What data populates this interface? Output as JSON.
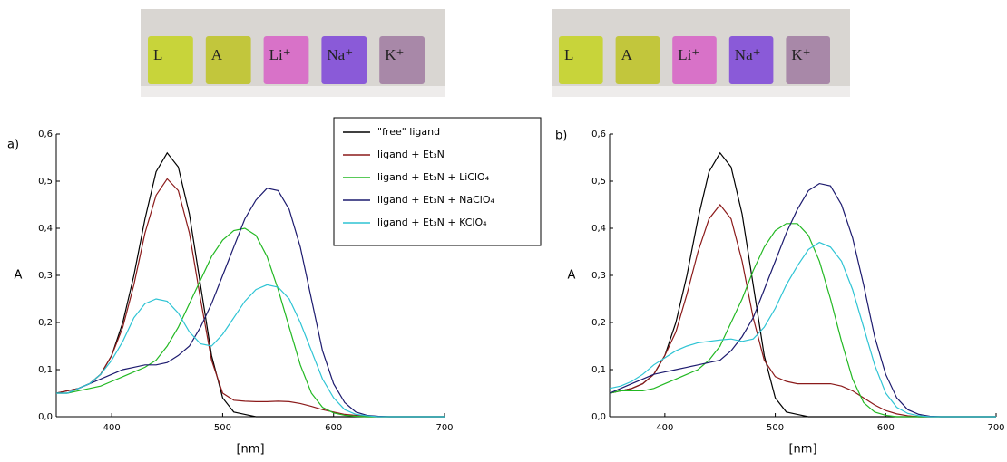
{
  "photos": [
    {
      "labels": [
        "L",
        "A",
        "Li⁺",
        "Na⁺",
        "K⁺"
      ]
    },
    {
      "labels": [
        "L",
        "A",
        "Li⁺",
        "Na⁺",
        "K⁺"
      ]
    }
  ],
  "chart_data": [
    {
      "type": "line",
      "panel_label": "a)",
      "x_label": "[nm]",
      "y_label": "A",
      "legend": "top-center",
      "x": [
        350,
        360,
        370,
        380,
        390,
        400,
        410,
        420,
        430,
        440,
        450,
        460,
        470,
        480,
        490,
        500,
        510,
        520,
        530,
        540,
        550,
        560,
        570,
        580,
        590,
        600,
        610,
        620,
        630,
        640,
        650,
        660,
        670,
        680,
        690,
        700
      ],
      "xlim": [
        350,
        700
      ],
      "ylim": [
        0,
        0.6
      ],
      "xticks": [
        400,
        500,
        600,
        700
      ],
      "yticks": [
        {
          "value": 0,
          "label": "0,0"
        },
        {
          "value": 0.1,
          "label": "0,1"
        },
        {
          "value": 0.2,
          "label": "0,2"
        },
        {
          "value": 0.3,
          "label": "0,3"
        },
        {
          "value": 0.4,
          "label": "0,4"
        },
        {
          "value": 0.5,
          "label": "0,5"
        },
        {
          "value": 0.6,
          "label": "0,6"
        }
      ],
      "series": [
        {
          "name": "\"free\" ligand",
          "color": "#000000",
          "values": [
            0.05,
            0.055,
            0.06,
            0.07,
            0.09,
            0.13,
            0.2,
            0.3,
            0.42,
            0.52,
            0.56,
            0.53,
            0.43,
            0.28,
            0.13,
            0.04,
            0.01,
            0.005,
            0,
            0,
            0,
            0,
            0,
            0,
            0,
            0,
            0,
            0,
            0,
            0,
            0,
            0,
            0,
            0,
            0,
            0
          ]
        },
        {
          "name": "ligand + Et₃N",
          "color": "#8b1a1a",
          "values": [
            0.05,
            0.055,
            0.06,
            0.07,
            0.09,
            0.13,
            0.19,
            0.28,
            0.39,
            0.47,
            0.505,
            0.48,
            0.39,
            0.25,
            0.12,
            0.05,
            0.035,
            0.033,
            0.032,
            0.032,
            0.033,
            0.032,
            0.028,
            0.022,
            0.015,
            0.01,
            0.005,
            0.003,
            0.002,
            0,
            0,
            0,
            0,
            0,
            0,
            0
          ]
        },
        {
          "name": "ligand + Et₃N + LiClO₄",
          "color": "#22b822",
          "values": [
            0.05,
            0.05,
            0.055,
            0.06,
            0.065,
            0.075,
            0.085,
            0.095,
            0.105,
            0.12,
            0.15,
            0.19,
            0.24,
            0.29,
            0.34,
            0.375,
            0.395,
            0.4,
            0.385,
            0.34,
            0.27,
            0.19,
            0.11,
            0.05,
            0.02,
            0.008,
            0.003,
            0.001,
            0,
            0,
            0,
            0,
            0,
            0,
            0,
            0
          ]
        },
        {
          "name": "ligand + Et₃N + NaClO₄",
          "color": "#1c1a6e",
          "values": [
            0.05,
            0.05,
            0.06,
            0.07,
            0.08,
            0.09,
            0.1,
            0.105,
            0.11,
            0.11,
            0.115,
            0.13,
            0.15,
            0.19,
            0.24,
            0.3,
            0.36,
            0.42,
            0.46,
            0.485,
            0.48,
            0.44,
            0.36,
            0.25,
            0.14,
            0.07,
            0.03,
            0.01,
            0.003,
            0.001,
            0,
            0,
            0,
            0,
            0,
            0
          ]
        },
        {
          "name": "ligand + Et₃N + KClO₄",
          "color": "#2ec4d4",
          "values": [
            0.05,
            0.05,
            0.06,
            0.07,
            0.09,
            0.12,
            0.16,
            0.21,
            0.24,
            0.25,
            0.245,
            0.22,
            0.18,
            0.155,
            0.15,
            0.175,
            0.21,
            0.245,
            0.27,
            0.28,
            0.275,
            0.25,
            0.2,
            0.14,
            0.08,
            0.04,
            0.015,
            0.005,
            0.002,
            0,
            0,
            0,
            0,
            0,
            0,
            0
          ]
        }
      ]
    },
    {
      "type": "line",
      "panel_label": "b)",
      "x_label": "[nm]",
      "y_label": "A",
      "x": [
        350,
        360,
        370,
        380,
        390,
        400,
        410,
        420,
        430,
        440,
        450,
        460,
        470,
        480,
        490,
        500,
        510,
        520,
        530,
        540,
        550,
        560,
        570,
        580,
        590,
        600,
        610,
        620,
        630,
        640,
        650,
        660,
        670,
        680,
        690,
        700
      ],
      "xlim": [
        350,
        700
      ],
      "ylim": [
        0,
        0.6
      ],
      "xticks": [
        400,
        500,
        600,
        700
      ],
      "yticks": [
        {
          "value": 0,
          "label": "0,0"
        },
        {
          "value": 0.1,
          "label": "0,1"
        },
        {
          "value": 0.2,
          "label": "0,2"
        },
        {
          "value": 0.3,
          "label": "0,3"
        },
        {
          "value": 0.4,
          "label": "0,4"
        },
        {
          "value": 0.5,
          "label": "0,5"
        },
        {
          "value": 0.6,
          "label": "0,6"
        }
      ],
      "series": [
        {
          "color": "#000000",
          "values": [
            0.05,
            0.055,
            0.06,
            0.07,
            0.09,
            0.13,
            0.2,
            0.3,
            0.42,
            0.52,
            0.56,
            0.53,
            0.43,
            0.28,
            0.13,
            0.04,
            0.01,
            0.005,
            0,
            0,
            0,
            0,
            0,
            0,
            0,
            0,
            0,
            0,
            0,
            0,
            0,
            0,
            0,
            0,
            0,
            0
          ]
        },
        {
          "color": "#8b1a1a",
          "values": [
            0.05,
            0.055,
            0.06,
            0.07,
            0.09,
            0.13,
            0.18,
            0.26,
            0.35,
            0.42,
            0.45,
            0.42,
            0.33,
            0.21,
            0.12,
            0.085,
            0.075,
            0.07,
            0.07,
            0.07,
            0.07,
            0.065,
            0.055,
            0.04,
            0.025,
            0.013,
            0.006,
            0.002,
            0,
            0,
            0,
            0,
            0,
            0,
            0,
            0
          ]
        },
        {
          "color": "#22b822",
          "values": [
            0.05,
            0.055,
            0.055,
            0.055,
            0.06,
            0.07,
            0.08,
            0.09,
            0.1,
            0.12,
            0.15,
            0.2,
            0.25,
            0.31,
            0.36,
            0.395,
            0.41,
            0.41,
            0.385,
            0.33,
            0.25,
            0.16,
            0.08,
            0.03,
            0.01,
            0.003,
            0,
            0,
            0,
            0,
            0,
            0,
            0,
            0,
            0,
            0
          ]
        },
        {
          "color": "#1c1a6e",
          "values": [
            0.05,
            0.06,
            0.07,
            0.08,
            0.09,
            0.095,
            0.1,
            0.105,
            0.11,
            0.115,
            0.12,
            0.14,
            0.17,
            0.21,
            0.27,
            0.33,
            0.39,
            0.44,
            0.48,
            0.495,
            0.49,
            0.45,
            0.38,
            0.28,
            0.17,
            0.09,
            0.04,
            0.015,
            0.005,
            0.001,
            0,
            0,
            0,
            0,
            0,
            0
          ]
        },
        {
          "color": "#2ec4d4",
          "values": [
            0.06,
            0.065,
            0.075,
            0.09,
            0.11,
            0.125,
            0.14,
            0.15,
            0.157,
            0.16,
            0.163,
            0.165,
            0.16,
            0.165,
            0.19,
            0.23,
            0.28,
            0.32,
            0.355,
            0.37,
            0.36,
            0.33,
            0.27,
            0.19,
            0.11,
            0.05,
            0.02,
            0.007,
            0.002,
            0,
            0,
            0,
            0,
            0,
            0,
            0
          ]
        }
      ]
    }
  ]
}
